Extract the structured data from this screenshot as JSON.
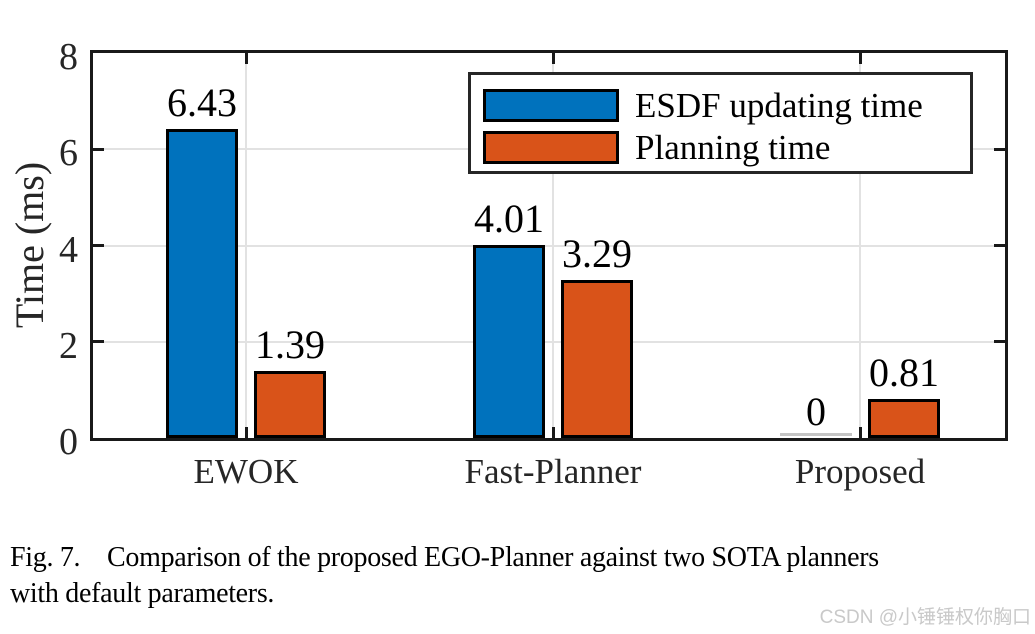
{
  "figure": {
    "caption_line1": "Fig. 7.    Comparison of the proposed EGO-Planner against two SOTA planners",
    "caption_line2": "with default parameters.",
    "watermark": "CSDN @小锤锤权你胸口"
  },
  "chart_data": {
    "type": "bar",
    "title": "",
    "categories": [
      "EWOK",
      "Fast-Planner",
      "Proposed"
    ],
    "series": [
      {
        "name": "ESDF updating time",
        "color": "#0072BD",
        "values": [
          6.43,
          4.01,
          0
        ],
        "labels": [
          "6.43",
          "4.01",
          "0"
        ]
      },
      {
        "name": "Planning time",
        "color": "#D95319",
        "values": [
          1.39,
          3.29,
          0.81
        ],
        "labels": [
          "1.39",
          "3.29",
          "0.81"
        ]
      }
    ],
    "xlabel": "",
    "ylabel": "Time (ms)",
    "ylim": [
      0,
      8
    ],
    "yticks": [
      0,
      2,
      4,
      6,
      8
    ],
    "grid": true,
    "legend_position": "top-right-inside",
    "colors": {
      "grid": "#e2e2e2",
      "axis": "#191919",
      "bar_edge": "#000000",
      "tick_label_color": "#262626",
      "zero_bar": "#c4c4c4"
    }
  }
}
